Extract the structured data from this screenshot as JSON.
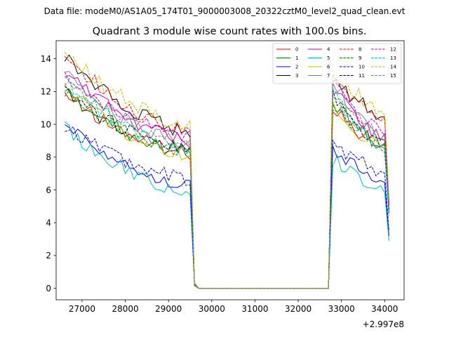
{
  "header": "Data file: modeM0/AS1A05_174T01_9000003008_20322cztM0_level2_quad_clean.evt",
  "chart_data": {
    "type": "line",
    "title": "Quadrant 3 module wise count rates with 100.0s bins.",
    "xlabel": "",
    "ylabel": "",
    "x_offset_label": "+2.997e8",
    "xlim": [
      26400,
      34450
    ],
    "ylim": [
      -0.7,
      15.1
    ],
    "xticks": [
      27000,
      28000,
      29000,
      30000,
      31000,
      32000,
      33000,
      34000
    ],
    "yticks": [
      0,
      2,
      4,
      6,
      8,
      10,
      12,
      14
    ],
    "xtick_labels": [
      "27000",
      "28000",
      "29000",
      "30000",
      "31000",
      "32000",
      "33000",
      "34000"
    ],
    "ytick_labels": [
      "0",
      "2",
      "4",
      "6",
      "8",
      "10",
      "12",
      "14"
    ],
    "legend_position": "upper-right",
    "segment1": {
      "x_start": 26600,
      "x_end": 29500,
      "step": 100
    },
    "gap": {
      "x_start": 29600,
      "x_end": 32700,
      "level_after_drop": 0.25
    },
    "segment2": {
      "x_start": 32800,
      "x_end": 34000,
      "step": 100
    },
    "final_point": 34100,
    "series": [
      {
        "name": "0",
        "color": "#ff0000",
        "dash": "solid",
        "start": 11.8,
        "end": 8.3,
        "peak": 11.0,
        "end2": 8.6,
        "last": 4.8
      },
      {
        "name": "1",
        "color": "#008000",
        "dash": "solid",
        "start": 12.0,
        "end": 8.3,
        "peak": 11.4,
        "end2": 8.6,
        "last": 4.9
      },
      {
        "name": "2",
        "color": "#0000ff",
        "dash": "solid",
        "start": 10.1,
        "end": 6.3,
        "peak": 8.5,
        "end2": 6.5,
        "last": 3.2
      },
      {
        "name": "3",
        "color": "#000000",
        "dash": "solid",
        "start": 14.1,
        "end": 9.6,
        "peak": 12.8,
        "end2": 10.4,
        "last": 5.1
      },
      {
        "name": "4",
        "color": "#bf00bf",
        "dash": "solid",
        "start": 13.3,
        "end": 9.0,
        "peak": 12.2,
        "end2": 9.0,
        "last": 5.0
      },
      {
        "name": "5",
        "color": "#00bfbf",
        "dash": "solid",
        "start": 9.8,
        "end": 6.0,
        "peak": 7.9,
        "end2": 6.0,
        "last": 2.9
      },
      {
        "name": "6",
        "color": "#bfbf00",
        "dash": "solid",
        "start": 12.3,
        "end": 8.1,
        "peak": 11.2,
        "end2": 8.4,
        "last": 4.4
      },
      {
        "name": "7",
        "color": "#808080",
        "dash": "solid",
        "start": 13.1,
        "end": 8.8,
        "peak": 12.6,
        "end2": 8.9,
        "last": 4.8
      },
      {
        "name": "8",
        "color": "#ff0000",
        "dash": "dashed",
        "start": 14.2,
        "end": 9.6,
        "peak": 13.1,
        "end2": 10.0,
        "last": 5.2
      },
      {
        "name": "9",
        "color": "#008000",
        "dash": "dashed",
        "start": 11.9,
        "end": 8.4,
        "peak": 11.1,
        "end2": 8.6,
        "last": 4.7
      },
      {
        "name": "10",
        "color": "#0000ff",
        "dash": "dashed",
        "start": 9.9,
        "end": 6.7,
        "peak": 8.7,
        "end2": 7.1,
        "last": 3.5
      },
      {
        "name": "11",
        "color": "#000000",
        "dash": "dashed",
        "start": 11.9,
        "end": 8.5,
        "peak": 11.8,
        "end2": 8.7,
        "last": 4.6
      },
      {
        "name": "12",
        "color": "#bf00bf",
        "dash": "dashed",
        "start": 12.9,
        "end": 9.3,
        "peak": 12.4,
        "end2": 9.5,
        "last": 5.0
      },
      {
        "name": "13",
        "color": "#00bfbf",
        "dash": "dashed",
        "start": 12.7,
        "end": 8.3,
        "peak": 12.0,
        "end2": 8.6,
        "last": 4.6
      },
      {
        "name": "14",
        "color": "#bfbf00",
        "dash": "dashed",
        "start": 14.4,
        "end": 10.0,
        "peak": 13.3,
        "end2": 10.7,
        "last": 5.5
      },
      {
        "name": "15",
        "color": "#808080",
        "dash": "dashed",
        "start": 12.5,
        "end": 8.8,
        "peak": 11.7,
        "end2": 9.2,
        "last": 4.9
      }
    ]
  }
}
